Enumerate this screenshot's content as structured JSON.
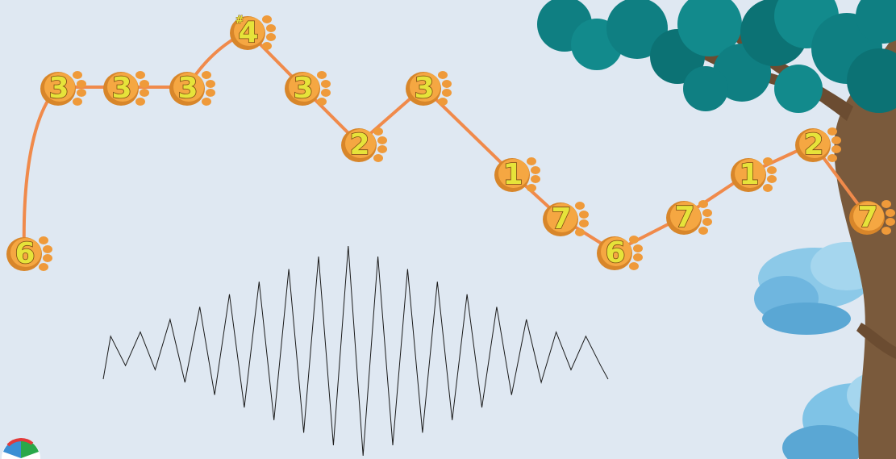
{
  "colors": {
    "background": "#dfe8f2",
    "melody_line": "#f08a4b",
    "paw_outer": "#f5a742",
    "paw_inner": "#d8862a",
    "paw_toes": "#ef9a3a",
    "note_text": "#e6e33a",
    "note_text_outline": "#7a4a12",
    "wave_stroke": "#1a1a1a",
    "tree_trunk": "#7a5a3c",
    "tree_leaves": "#0f7f82",
    "cloud": "#7fc3e6"
  },
  "icons": {
    "note_marker": "paw-print-icon",
    "corner_logo": "globe-logo-icon"
  },
  "melody": {
    "notes": [
      {
        "digit": "6",
        "accidental": ""
      },
      {
        "digit": "3",
        "accidental": ""
      },
      {
        "digit": "3",
        "accidental": ""
      },
      {
        "digit": "3",
        "accidental": ""
      },
      {
        "digit": "4",
        "accidental": "#"
      },
      {
        "digit": "3",
        "accidental": ""
      },
      {
        "digit": "2",
        "accidental": ""
      },
      {
        "digit": "3",
        "accidental": ""
      },
      {
        "digit": "1",
        "accidental": ""
      },
      {
        "digit": "7",
        "accidental": ""
      },
      {
        "digit": "6",
        "accidental": ""
      },
      {
        "digit": "7",
        "accidental": ""
      },
      {
        "digit": "1",
        "accidental": ""
      },
      {
        "digit": "2",
        "accidental": ""
      },
      {
        "digit": "7",
        "accidental": ""
      }
    ]
  },
  "wave": {
    "peak_heights": [
      0.14,
      0.18,
      0.3,
      0.42,
      0.54,
      0.66,
      0.78,
      0.9,
      1.0,
      0.9,
      0.78,
      0.66,
      0.54,
      0.42,
      0.3,
      0.18,
      0.14
    ]
  }
}
